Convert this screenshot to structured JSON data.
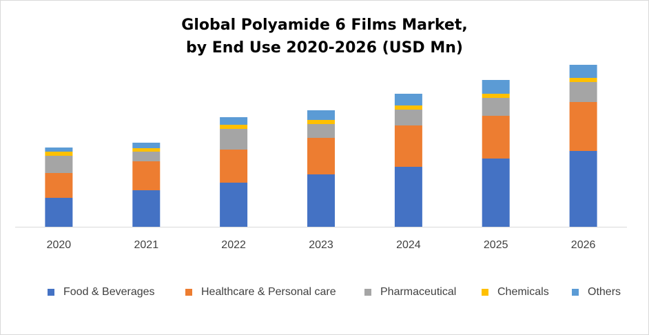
{
  "chart_data": {
    "type": "bar",
    "stacked": true,
    "title_lines": [
      "Global Polyamide 6 Films Market,",
      "by End Use 2020-2026 (USD Mn)"
    ],
    "categories": [
      "2020",
      "2021",
      "2022",
      "2023",
      "2024",
      "2025",
      "2026"
    ],
    "series": [
      {
        "name": "Food & Beverages",
        "color": "#4472C4",
        "values": [
          42,
          53,
          64,
          76,
          87,
          99,
          110
        ]
      },
      {
        "name": "Healthcare & Personal care",
        "color": "#ED7D31",
        "values": [
          36,
          42,
          48,
          53,
          60,
          62,
          71
        ]
      },
      {
        "name": "Pharmaceutical",
        "color": "#A5A5A5",
        "values": [
          25,
          14,
          30,
          20,
          23,
          26,
          29
        ]
      },
      {
        "name": "Chemicals",
        "color": "#FFC000",
        "values": [
          6,
          5,
          6,
          6,
          6,
          6,
          6
        ]
      },
      {
        "name": "Others",
        "color": "#5B9BD5",
        "values": [
          6,
          8,
          11,
          14,
          17,
          20,
          19
        ]
      }
    ],
    "ylim": [
      0,
      250
    ],
    "xlabel": "",
    "ylabel": "",
    "grid": false,
    "legend_position": "bottom"
  }
}
